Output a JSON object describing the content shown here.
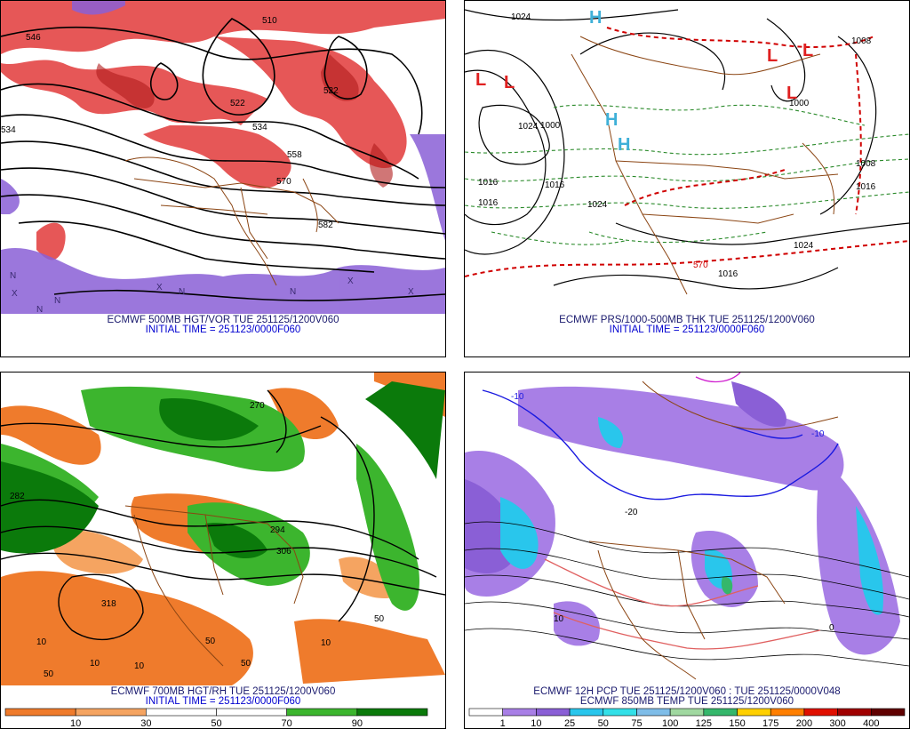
{
  "panels": {
    "tl": {
      "caption1": "ECMWF 500MB HGT/VOR TUE 251125/1200V060",
      "caption2": "INITIAL TIME = 251123/0000F060",
      "labels": [
        "510",
        "522",
        "534",
        "546",
        "558",
        "570",
        "582",
        "546",
        "510"
      ],
      "markers": [
        "N",
        "N",
        "N",
        "X",
        "X",
        "X",
        "X",
        "N",
        "N"
      ]
    },
    "tr": {
      "caption1": "ECMWF PRS/1000-500MB THK TUE 251125/1200V060",
      "caption2": "INITIAL TIME = 251123/0000F060",
      "pressure_labels": [
        "1024",
        "1008",
        "1000",
        "1016",
        "1016",
        "1024",
        "1024",
        "1016",
        "1000",
        "1008",
        "1016",
        "1024",
        "1016"
      ],
      "thickness_label": "570",
      "highs": [
        "H",
        "H",
        "H"
      ],
      "lows": [
        "L",
        "L",
        "L",
        "L",
        "L"
      ]
    },
    "bl": {
      "caption1": "ECMWF 700MB HGT/RH TUE 251125/1200V060",
      "caption2": "INITIAL TIME = 251123/0000F060",
      "contour_labels": [
        "318",
        "294",
        "306",
        "282",
        "270"
      ],
      "colorbar_ticks": [
        "10",
        "30",
        "50",
        "70",
        "90"
      ],
      "colorbar_colors": [
        "#ef7b2c",
        "#f5a461",
        "#ffffff",
        "#ffffff",
        "#3cb52e",
        "#0b7a0b"
      ]
    },
    "br": {
      "caption1": "ECMWF 12H PCP TUE 251125/1200V060 : TUE 251125/0000V048",
      "caption2": "ECMWF 850MB TEMP TUE 251125/1200V060",
      "colorbar_ticks": [
        "1",
        "10",
        "25",
        "50",
        "75",
        "100",
        "125",
        "150",
        "175",
        "200",
        "300",
        "400"
      ],
      "colorbar_colors": [
        "#ffffff",
        "#a87fe6",
        "#8a5fd6",
        "#29c6ec",
        "#33e0e8",
        "#7fbde8",
        "#a0d8a0",
        "#35b76b",
        "#ffd000",
        "#ff7f00",
        "#e01000",
        "#a00000",
        "#600000"
      ],
      "temp_labels": [
        "-10",
        "-10",
        "-20",
        "0",
        "10"
      ]
    }
  }
}
